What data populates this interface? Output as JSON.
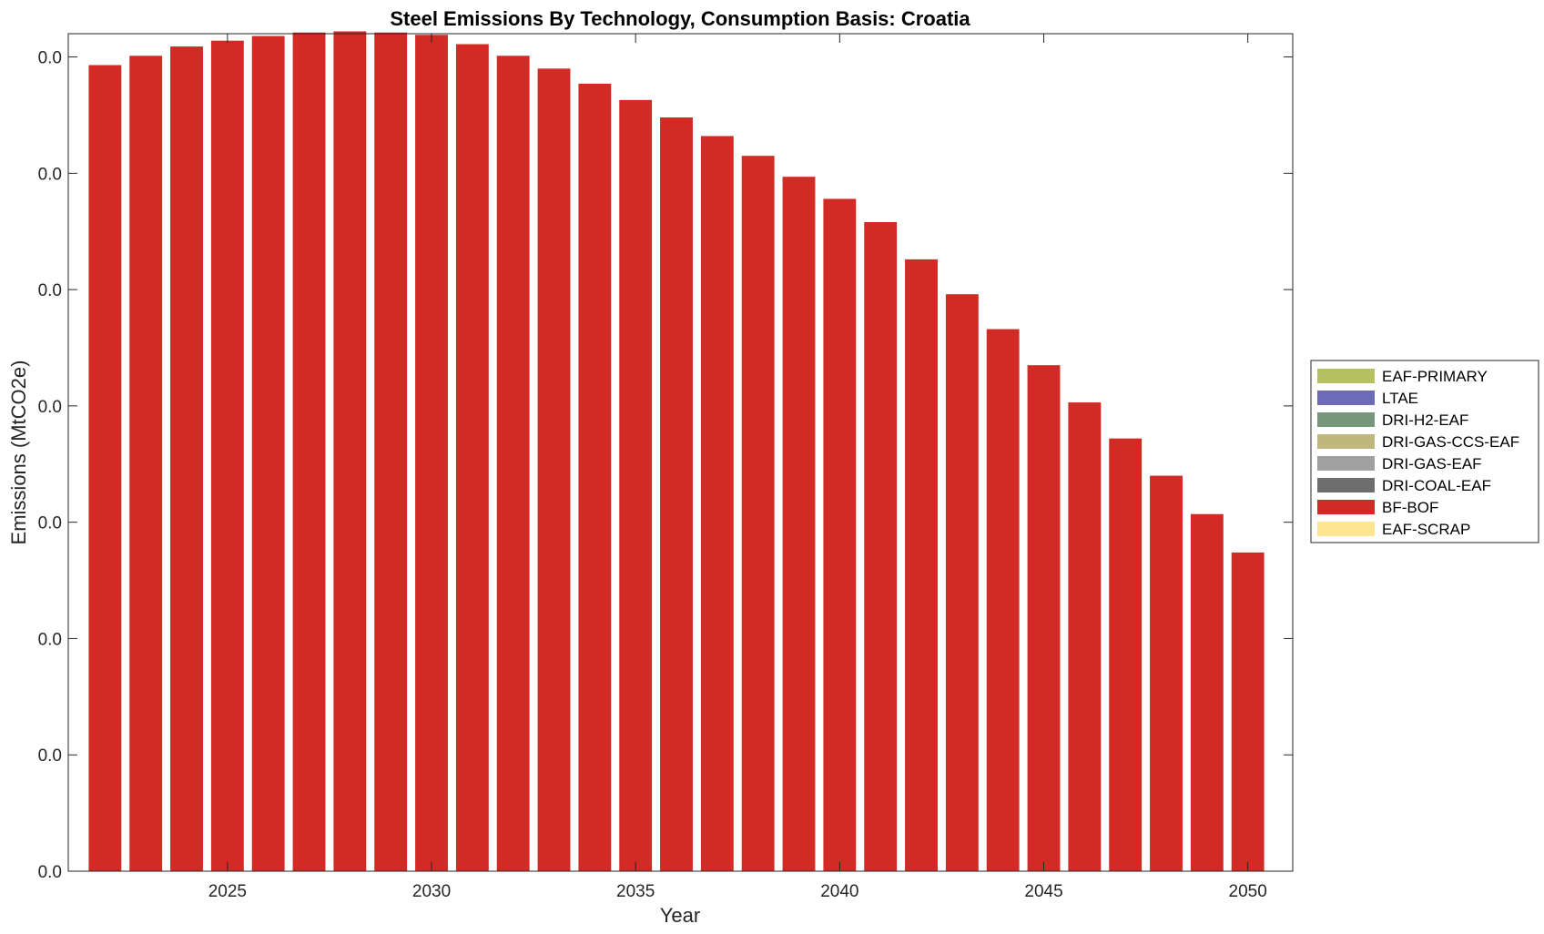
{
  "chart_data": {
    "type": "bar",
    "stacked": true,
    "title": "Steel Emissions By Technology, Consumption Basis: Croatia",
    "xlabel": "Year",
    "ylabel": "Emissions (MtCO2e)",
    "x": [
      2022,
      2023,
      2024,
      2025,
      2026,
      2027,
      2028,
      2029,
      2030,
      2031,
      2032,
      2033,
      2034,
      2035,
      2036,
      2037,
      2038,
      2039,
      2040,
      2041,
      2042,
      2043,
      2044,
      2045,
      2046,
      2047,
      2048,
      2049,
      2050
    ],
    "xlim": [
      2021.1,
      2051.1
    ],
    "xticks": [
      2025,
      2030,
      2035,
      2040,
      2045,
      2050
    ],
    "xtick_labels": [
      "2025",
      "2030",
      "2035",
      "2040",
      "2045",
      "2050"
    ],
    "ylim": [
      0,
      0.0072
    ],
    "yticks": [
      0,
      0.001,
      0.002,
      0.003,
      0.004,
      0.005,
      0.006,
      0.007
    ],
    "ytick_labels": [
      "0.0",
      "0.0",
      "0.0",
      "0.0",
      "0.0",
      "0.0",
      "0.0",
      "0.0"
    ],
    "grid": false,
    "legend_position": "outside-right",
    "series": [
      {
        "name": "EAF-PRIMARY",
        "color": "#b5c160",
        "values": [
          0,
          0,
          0,
          0,
          0,
          0,
          0,
          0,
          0,
          0,
          0,
          0,
          0,
          0,
          0,
          0,
          0,
          0,
          0,
          0,
          0,
          0,
          0,
          0,
          0,
          0,
          0,
          0,
          0
        ]
      },
      {
        "name": "LTAE",
        "color": "#6b6bb8",
        "values": [
          0,
          0,
          0,
          0,
          0,
          0,
          0,
          0,
          0,
          0,
          0,
          0,
          0,
          0,
          0,
          0,
          0,
          0,
          0,
          0,
          0,
          0,
          0,
          0,
          0,
          0,
          0,
          0,
          0
        ]
      },
      {
        "name": "DRI-H2-EAF",
        "color": "#76977c",
        "values": [
          0,
          0,
          0,
          0,
          0,
          0,
          0,
          0,
          0,
          0,
          0,
          0,
          0,
          0,
          0,
          0,
          0,
          0,
          0,
          0,
          0,
          0,
          0,
          0,
          0,
          0,
          0,
          0,
          0
        ]
      },
      {
        "name": "DRI-GAS-CCS-EAF",
        "color": "#bfb87c",
        "values": [
          0,
          0,
          0,
          0,
          0,
          0,
          0,
          0,
          0,
          0,
          0,
          0,
          0,
          0,
          0,
          0,
          0,
          0,
          0,
          0,
          0,
          0,
          0,
          0,
          0,
          0,
          0,
          0,
          0
        ]
      },
      {
        "name": "DRI-GAS-EAF",
        "color": "#a0a0a0",
        "values": [
          0,
          0,
          0,
          0,
          0,
          0,
          0,
          0,
          0,
          0,
          0,
          0,
          0,
          0,
          0,
          0,
          0,
          0,
          0,
          0,
          0,
          0,
          0,
          0,
          0,
          0,
          0,
          0,
          0
        ]
      },
      {
        "name": "DRI-COAL-EAF",
        "color": "#6e6e6e",
        "values": [
          0,
          0,
          0,
          0,
          0,
          0,
          0,
          0,
          0,
          0,
          0,
          0,
          0,
          0,
          0,
          0,
          0,
          0,
          0,
          0,
          0,
          0,
          0,
          0,
          0,
          0,
          0,
          0,
          0
        ]
      },
      {
        "name": "BF-BOF",
        "color": "#d22a25",
        "values": [
          0.00693,
          0.00701,
          0.00709,
          0.00714,
          0.00718,
          0.00721,
          0.00722,
          0.00721,
          0.00719,
          0.00711,
          0.00701,
          0.0069,
          0.00677,
          0.00663,
          0.00648,
          0.00632,
          0.00615,
          0.00597,
          0.00578,
          0.00558,
          0.00526,
          0.00496,
          0.00466,
          0.00435,
          0.00403,
          0.00372,
          0.0034,
          0.00307,
          0.00274
        ]
      },
      {
        "name": "EAF-SCRAP",
        "color": "#fde592",
        "values": [
          0,
          0,
          0,
          0,
          0,
          0,
          0,
          0,
          0,
          0,
          0,
          0,
          0,
          0,
          0,
          0,
          0,
          0,
          0,
          0,
          0,
          0,
          0,
          0,
          0,
          0,
          0,
          0,
          0
        ]
      }
    ]
  }
}
